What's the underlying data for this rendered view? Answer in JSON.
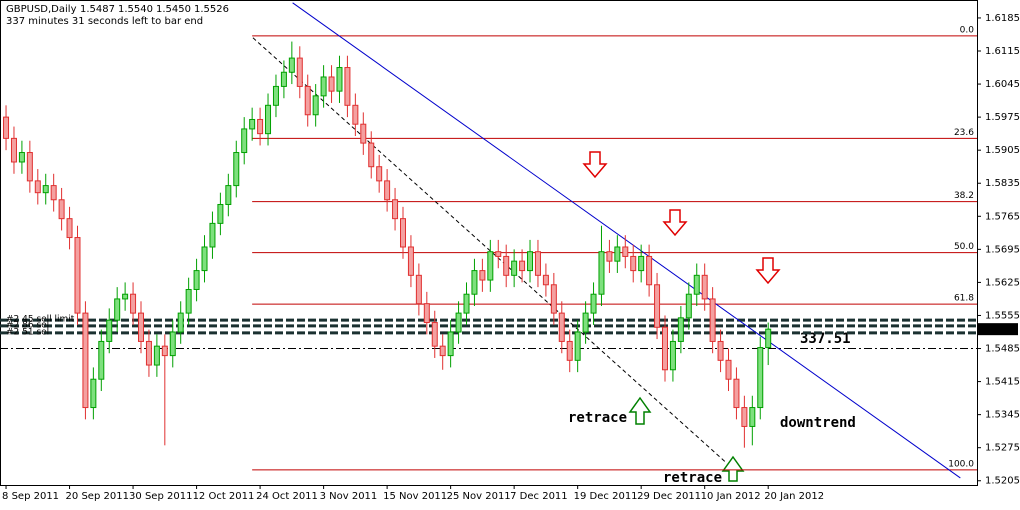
{
  "chart_data": {
    "type": "candlestick",
    "symbol": "GBPUSD,Daily",
    "last_bar_labels": [
      "1.5487",
      "1.5540",
      "1.5450",
      "1.5526"
    ],
    "subtitle": "337 minutes 31 seconds left to bar end",
    "categories": [
      "8 Sep 2011",
      null,
      null,
      null,
      null,
      null,
      null,
      null,
      "20 Sep 2011",
      null,
      null,
      null,
      null,
      null,
      null,
      null,
      "30 Sep 2011",
      null,
      null,
      null,
      null,
      null,
      null,
      null,
      "12 Oct 2011",
      null,
      null,
      null,
      null,
      null,
      null,
      null,
      "24 Oct 2011",
      null,
      null,
      null,
      null,
      null,
      null,
      null,
      "3 Nov 2011",
      null,
      null,
      null,
      null,
      null,
      null,
      null,
      "15 Nov 2011",
      null,
      null,
      null,
      null,
      null,
      null,
      null,
      "25 Nov 2011",
      null,
      null,
      null,
      null,
      null,
      null,
      null,
      "7 Dec 2011",
      null,
      null,
      null,
      null,
      null,
      null,
      null,
      "19 Dec 2011",
      null,
      null,
      null,
      null,
      null,
      null,
      null,
      "29 Dec 2011",
      null,
      null,
      null,
      null,
      null,
      null,
      null,
      "10 Jan 2012",
      null,
      null,
      null,
      null,
      null,
      null,
      null,
      "20 Jan 2012"
    ],
    "candles": [
      [
        1.5975,
        1.6,
        1.5905,
        1.593
      ],
      [
        1.593,
        1.5955,
        1.5855,
        1.588
      ],
      [
        1.588,
        1.5925,
        1.5855,
        1.59
      ],
      [
        1.59,
        1.5925,
        1.5815,
        1.584
      ],
      [
        1.584,
        1.5865,
        1.579,
        1.5815
      ],
      [
        1.5815,
        1.5855,
        1.579,
        1.583
      ],
      [
        1.583,
        1.5855,
        1.5775,
        1.58
      ],
      [
        1.58,
        1.5825,
        1.5735,
        1.576
      ],
      [
        1.576,
        1.5785,
        1.5695,
        1.572
      ],
      [
        1.572,
        1.5745,
        1.5535,
        1.556
      ],
      [
        1.556,
        1.5585,
        1.5335,
        1.536
      ],
      [
        1.536,
        1.5445,
        1.5335,
        1.542
      ],
      [
        1.542,
        1.5525,
        1.5395,
        1.55
      ],
      [
        1.55,
        1.557,
        1.5475,
        1.5545
      ],
      [
        1.5545,
        1.5615,
        1.552,
        1.559
      ],
      [
        1.559,
        1.5625,
        1.5565,
        1.56
      ],
      [
        1.56,
        1.5625,
        1.5535,
        1.556
      ],
      [
        1.556,
        1.5585,
        1.5475,
        1.55
      ],
      [
        1.55,
        1.5525,
        1.5425,
        1.545
      ],
      [
        1.545,
        1.5515,
        1.5425,
        1.549
      ],
      [
        1.549,
        1.5515,
        1.528,
        1.547
      ],
      [
        1.547,
        1.5545,
        1.5445,
        1.552
      ],
      [
        1.552,
        1.5585,
        1.5495,
        1.556
      ],
      [
        1.556,
        1.5635,
        1.5535,
        1.561
      ],
      [
        1.561,
        1.5675,
        1.5585,
        1.565
      ],
      [
        1.565,
        1.5725,
        1.5625,
        1.57
      ],
      [
        1.57,
        1.5775,
        1.5675,
        1.575
      ],
      [
        1.575,
        1.5815,
        1.5725,
        1.579
      ],
      [
        1.579,
        1.5855,
        1.5765,
        1.583
      ],
      [
        1.583,
        1.5925,
        1.5805,
        1.59
      ],
      [
        1.59,
        1.5975,
        1.5875,
        1.595
      ],
      [
        1.595,
        1.5995,
        1.5925,
        1.597
      ],
      [
        1.597,
        1.5995,
        1.5915,
        1.594
      ],
      [
        1.594,
        1.6025,
        1.5915,
        1.6
      ],
      [
        1.6,
        1.6065,
        1.5975,
        1.604
      ],
      [
        1.604,
        1.6095,
        1.6015,
        1.607
      ],
      [
        1.607,
        1.6135,
        1.6045,
        1.61
      ],
      [
        1.61,
        1.6125,
        1.6015,
        1.604
      ],
      [
        1.604,
        1.6065,
        1.5955,
        1.598
      ],
      [
        1.598,
        1.6045,
        1.5955,
        1.602
      ],
      [
        1.602,
        1.6085,
        1.5995,
        1.606
      ],
      [
        1.606,
        1.6085,
        1.6005,
        1.603
      ],
      [
        1.603,
        1.6105,
        1.6005,
        1.608
      ],
      [
        1.608,
        1.6105,
        1.5975,
        1.6
      ],
      [
        1.6,
        1.6025,
        1.5935,
        1.596
      ],
      [
        1.596,
        1.5985,
        1.5895,
        1.592
      ],
      [
        1.592,
        1.5945,
        1.5845,
        1.587
      ],
      [
        1.587,
        1.5895,
        1.5815,
        1.584
      ],
      [
        1.584,
        1.5865,
        1.5775,
        1.58
      ],
      [
        1.58,
        1.5825,
        1.5735,
        1.576
      ],
      [
        1.576,
        1.5785,
        1.5675,
        1.57
      ],
      [
        1.57,
        1.5725,
        1.5615,
        1.564
      ],
      [
        1.564,
        1.5665,
        1.5555,
        1.558
      ],
      [
        1.558,
        1.5605,
        1.5515,
        1.554
      ],
      [
        1.554,
        1.5565,
        1.5465,
        1.549
      ],
      [
        1.549,
        1.5515,
        1.544,
        1.547
      ],
      [
        1.547,
        1.5545,
        1.5445,
        1.552
      ],
      [
        1.552,
        1.5585,
        1.5495,
        1.556
      ],
      [
        1.556,
        1.5625,
        1.5535,
        1.56
      ],
      [
        1.56,
        1.5675,
        1.5575,
        1.565
      ],
      [
        1.565,
        1.5675,
        1.5605,
        1.563
      ],
      [
        1.563,
        1.5715,
        1.5605,
        1.569
      ],
      [
        1.569,
        1.5715,
        1.5655,
        1.568
      ],
      [
        1.568,
        1.5705,
        1.5615,
        1.564
      ],
      [
        1.564,
        1.5695,
        1.5615,
        1.567
      ],
      [
        1.567,
        1.5695,
        1.5625,
        1.565
      ],
      [
        1.565,
        1.5715,
        1.5625,
        1.569
      ],
      [
        1.569,
        1.5715,
        1.5615,
        1.564
      ],
      [
        1.564,
        1.5665,
        1.5595,
        1.562
      ],
      [
        1.562,
        1.5645,
        1.5535,
        1.556
      ],
      [
        1.556,
        1.5585,
        1.5475,
        1.55
      ],
      [
        1.55,
        1.5525,
        1.5435,
        1.546
      ],
      [
        1.546,
        1.5545,
        1.5435,
        1.552
      ],
      [
        1.552,
        1.5585,
        1.5495,
        1.556
      ],
      [
        1.556,
        1.5625,
        1.5535,
        1.56
      ],
      [
        1.56,
        1.5745,
        1.5575,
        1.569
      ],
      [
        1.569,
        1.5715,
        1.5645,
        1.567
      ],
      [
        1.567,
        1.5725,
        1.5645,
        1.57
      ],
      [
        1.57,
        1.5725,
        1.5655,
        1.568
      ],
      [
        1.568,
        1.5705,
        1.5625,
        1.565
      ],
      [
        1.565,
        1.5705,
        1.5625,
        1.568
      ],
      [
        1.568,
        1.5705,
        1.5595,
        1.562
      ],
      [
        1.562,
        1.5645,
        1.5505,
        1.553
      ],
      [
        1.553,
        1.5555,
        1.5415,
        1.544
      ],
      [
        1.544,
        1.5525,
        1.5415,
        1.55
      ],
      [
        1.55,
        1.5575,
        1.5475,
        1.555
      ],
      [
        1.555,
        1.5625,
        1.5525,
        1.56
      ],
      [
        1.56,
        1.5665,
        1.5575,
        1.564
      ],
      [
        1.564,
        1.5665,
        1.5565,
        1.559
      ],
      [
        1.559,
        1.5615,
        1.5475,
        1.55
      ],
      [
        1.55,
        1.5525,
        1.5435,
        1.546
      ],
      [
        1.546,
        1.5485,
        1.5395,
        1.542
      ],
      [
        1.542,
        1.5445,
        1.5335,
        1.536
      ],
      [
        1.536,
        1.5385,
        1.5275,
        1.532
      ],
      [
        1.532,
        1.5385,
        1.528,
        1.536
      ],
      [
        1.536,
        1.551,
        1.5335,
        1.5487
      ],
      [
        1.5487,
        1.554,
        1.545,
        1.5526
      ]
    ],
    "bull_color": "#00a000",
    "bear_color": "#e03030",
    "xlim": [
      -0.76,
      122.3
    ],
    "ylim": [
      1.5196,
      1.6223
    ],
    "yticks": [
      1.6185,
      1.6115,
      1.6045,
      1.5975,
      1.5905,
      1.5835,
      1.5765,
      1.5695,
      1.5625,
      1.5555,
      1.5485,
      1.5415,
      1.5345,
      1.5275,
      1.5205
    ],
    "fib_levels": [
      {
        "level": {
          "value": 0,
          "label": "0.0"
        },
        "price": 1.6147
      },
      {
        "level": 23.6,
        "price": 1.593
      },
      {
        "level": 38.2,
        "price": 1.5796
      },
      {
        "level": {
          "value": 50,
          "label": "50.0"
        },
        "price": 1.5688
      },
      {
        "level": 61.8,
        "price": 1.5579
      },
      {
        "level": {
          "value": 100,
          "label": "100.0"
        },
        "price": 1.5228
      }
    ],
    "fib_color": "#c00000",
    "orders": [
      {
        "label": "#2      45 sell limit",
        "price": 1.5545
      },
      {
        "label": "#2      86 sel",
        "price": 1.5533
      },
      {
        "label": "#2      51 sel",
        "price": 1.5518
      }
    ],
    "extra_line": 1.5485,
    "trendlines": [
      {
        "color": "#0000cc",
        "dash": false,
        "points": [
          [
            36.1,
            1.6217
          ],
          [
            120.2,
            1.5211
          ]
        ]
      },
      {
        "color": "#000000",
        "dash": true,
        "points": [
          [
            31.1,
            1.6143
          ],
          [
            90.6,
            1.5245
          ]
        ]
      }
    ],
    "annotations": [
      {
        "text": "retrace",
        "color": "#008000"
      },
      {
        "text": "retrace",
        "color": "#008000"
      },
      {
        "text": "downtrend",
        "color": "#e00000"
      },
      {
        "text": "337.51",
        "color": "#33cc33"
      }
    ]
  }
}
